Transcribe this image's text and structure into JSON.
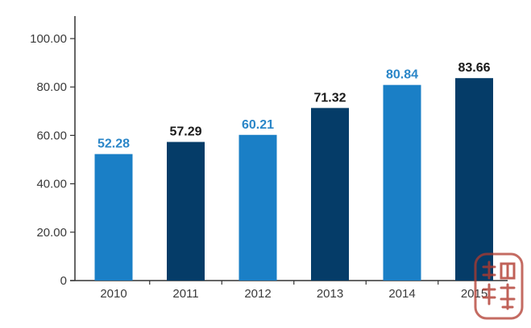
{
  "chart_data": {
    "type": "bar",
    "title": "",
    "xlabel": "",
    "ylabel": "",
    "categories": [
      "2010",
      "2011",
      "2012",
      "2013",
      "2014",
      "2015"
    ],
    "values": [
      52.28,
      57.29,
      60.21,
      71.32,
      80.84,
      83.66
    ],
    "value_labels": [
      "52.28",
      "57.29",
      "60.21",
      "71.32",
      "80.84",
      "83.66"
    ],
    "y_ticks": [
      "0",
      "20.00",
      "40.00",
      "60.00",
      "80.00",
      "100.00"
    ],
    "y_tick_values": [
      0,
      20,
      40,
      60,
      80,
      100
    ],
    "ylim": [
      0,
      100
    ],
    "grid": false,
    "legend": "none",
    "bar_colors": [
      "#1a7fc6",
      "#053c68",
      "#1a7fc6",
      "#053c68",
      "#1a7fc6",
      "#053c68"
    ],
    "label_colors": [
      "#2a86c8",
      "#1a1a1a",
      "#2a86c8",
      "#1a1a1a",
      "#2a86c8",
      "#1a1a1a"
    ],
    "axis_color": "#333333"
  },
  "watermark": {
    "icon": "red-seal-stamp-icon",
    "text": "酒訂臉網",
    "color": "#b03a2e"
  }
}
